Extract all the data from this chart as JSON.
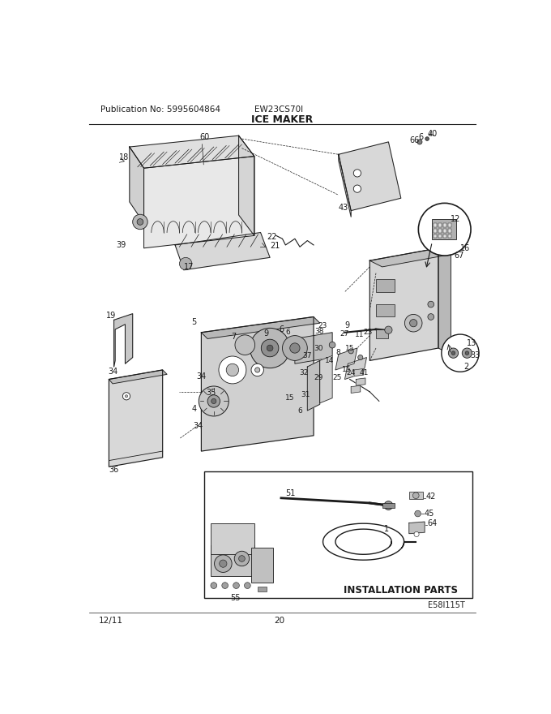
{
  "pub_no": "Publication No: 5995604864",
  "model": "EW23CS70I",
  "title": "ICE MAKER",
  "date": "12/11",
  "page": "20",
  "diagram_id": "E58I115T",
  "install_parts_label": "INSTALLATION PARTS",
  "bg_color": "#ffffff",
  "line_color": "#1a1a1a",
  "gray_light": "#e0e0e0",
  "gray_mid": "#c0c0c0",
  "gray_dark": "#909090",
  "fig_width": 6.8,
  "fig_height": 8.8,
  "dpi": 100
}
